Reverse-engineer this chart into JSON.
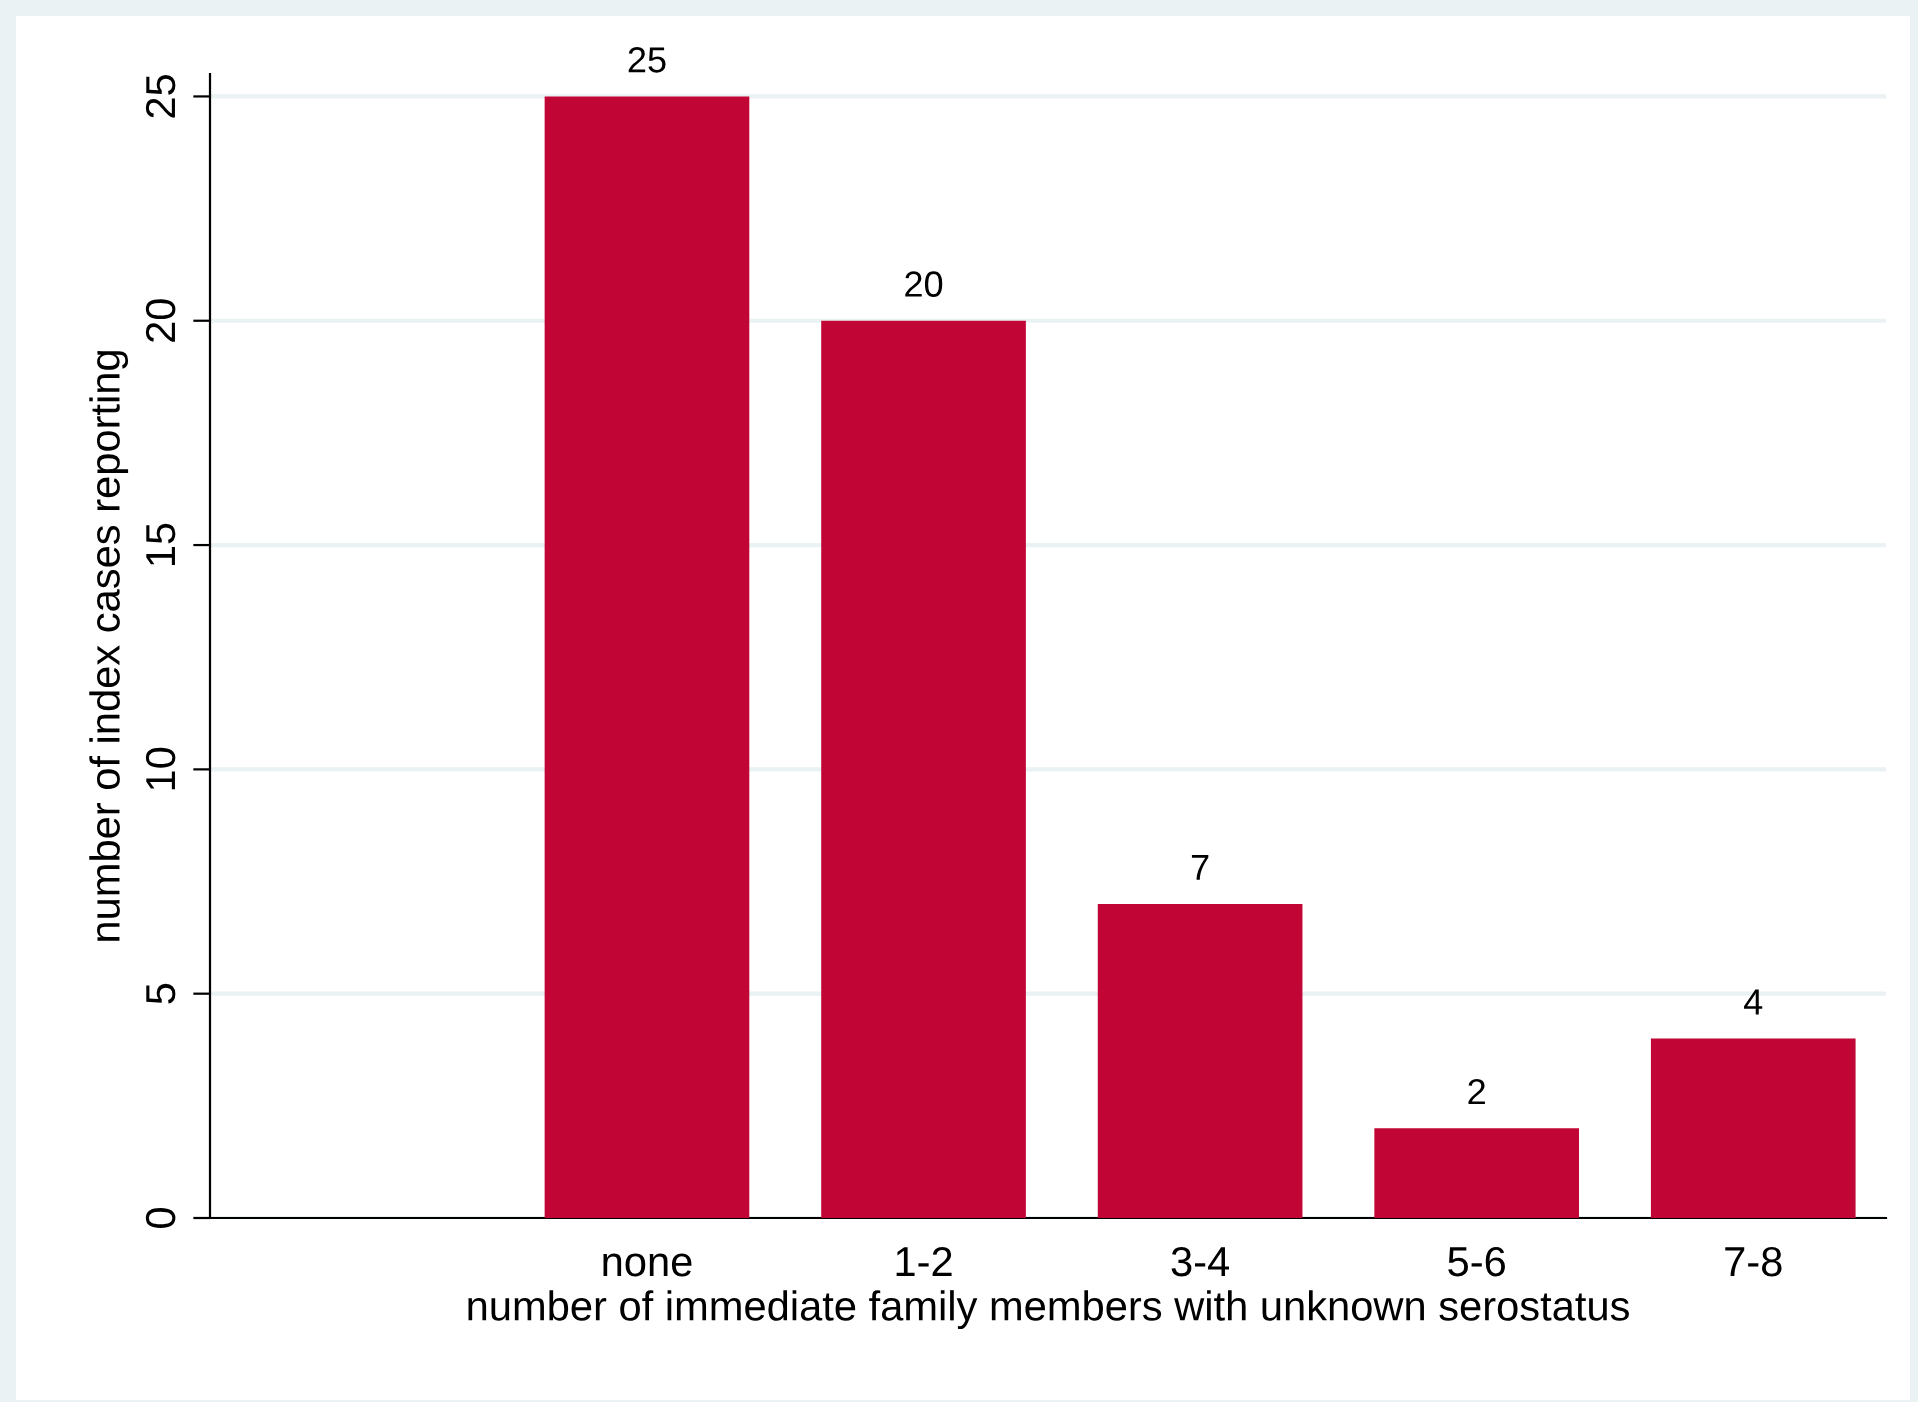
{
  "chart_data": {
    "type": "bar",
    "xlabel": "number of immediate family members with unknown serostatus",
    "ylabel": "number of index cases reporting",
    "categories": [
      null,
      "none",
      "1-2",
      "3-4",
      "5-6",
      "7-8"
    ],
    "values": [
      null,
      25,
      20,
      7,
      2,
      4
    ],
    "color": "#c10534",
    "ylim": [
      0,
      25.5
    ],
    "yticks": [
      0,
      5,
      10,
      15,
      20,
      25
    ],
    "grid": "y",
    "data_labels": true
  }
}
